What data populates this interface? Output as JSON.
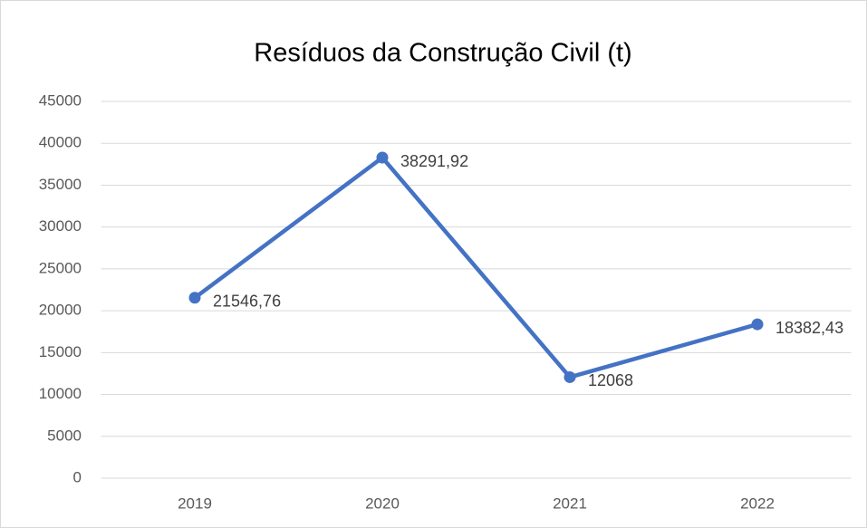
{
  "chart_data": {
    "type": "line",
    "title": "Resíduos da Construção Civil (t)",
    "categories": [
      "2019",
      "2020",
      "2021",
      "2022"
    ],
    "values": [
      21546.76,
      38291.92,
      12068,
      18382.43
    ],
    "value_labels": [
      "21546,76",
      "38291,92",
      "12068",
      "18382,43"
    ],
    "color": "#4472c4",
    "ylim": [
      0,
      45000
    ],
    "yticks": [
      0,
      5000,
      10000,
      15000,
      20000,
      25000,
      30000,
      35000,
      40000,
      45000
    ],
    "grid": true
  }
}
